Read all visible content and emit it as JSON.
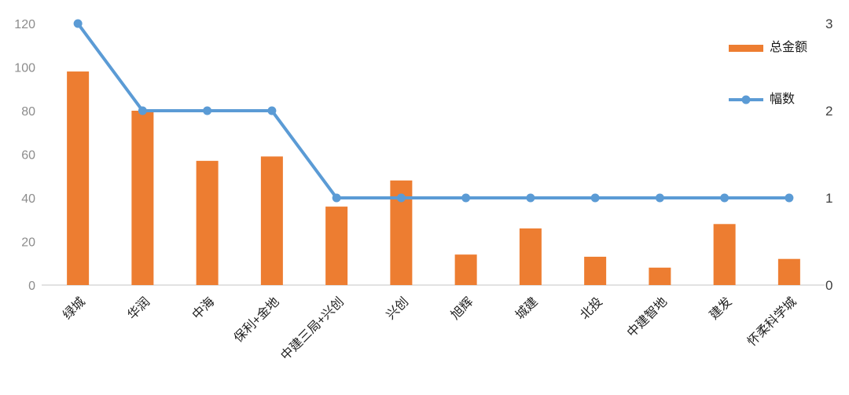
{
  "chart_data": {
    "type": "bar",
    "title": "",
    "categories": [
      "绿城",
      "华润",
      "中海",
      "保利+金地",
      "中建三局+兴创",
      "兴创",
      "旭辉",
      "城建",
      "北投",
      "中建智地",
      "建发",
      "怀柔科学城"
    ],
    "series": [
      {
        "name": "总金额",
        "type": "bar",
        "axis": "left",
        "color": "#ED7D31",
        "values": [
          98,
          80,
          57,
          59,
          36,
          48,
          14,
          26,
          13,
          8,
          28,
          12
        ]
      },
      {
        "name": "幅数",
        "type": "line",
        "axis": "right",
        "color": "#5B9BD5",
        "values": [
          3,
          2,
          2,
          2,
          1,
          1,
          1,
          1,
          1,
          1,
          1,
          1
        ]
      }
    ],
    "left_axis": {
      "min": 0,
      "max": 120,
      "ticks": [
        0,
        20,
        40,
        60,
        80,
        100,
        120
      ]
    },
    "right_axis": {
      "min": 0,
      "max": 3,
      "ticks": [
        0,
        1,
        2,
        3
      ]
    },
    "legend_position": "right",
    "grid": false,
    "xlabel": "",
    "ylabel": "",
    "colors": {
      "axis_line": "#D9D9D9",
      "left_tick_label": "#8C8C8C",
      "right_tick_label": "#404040",
      "category_label": "#1F1F1F"
    }
  }
}
